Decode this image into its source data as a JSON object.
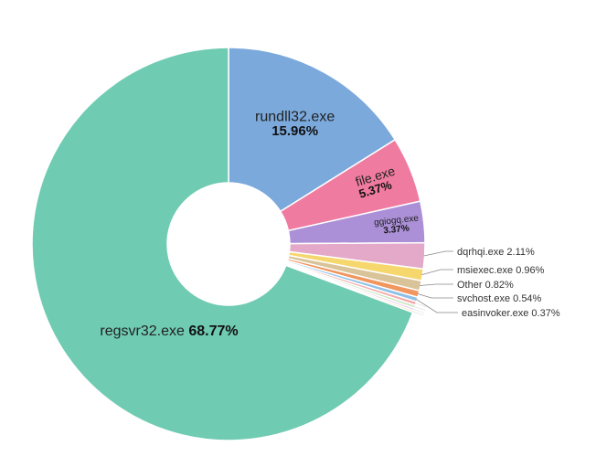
{
  "chart_data": {
    "type": "pie",
    "variant": "donut",
    "title": "",
    "legend": "none",
    "slices": [
      {
        "label": "rundll32.exe",
        "value": 15.96,
        "display": "15.96%",
        "color": "#7ba9dc"
      },
      {
        "label": "file.exe",
        "value": 5.37,
        "display": "5.37%",
        "color": "#ef7ba0"
      },
      {
        "label": "ggiogq.exe",
        "value": 3.37,
        "display": "3.37%",
        "color": "#ab8fd7"
      },
      {
        "label": "dqrhqi.exe",
        "value": 2.11,
        "display": "2.11%",
        "color": "#e4a9c8"
      },
      {
        "label": "msiexec.exe",
        "value": 0.96,
        "display": "0.96%",
        "color": "#f5d76e"
      },
      {
        "label": "Other",
        "value": 0.82,
        "display": "0.82%",
        "color": "#d9c49a"
      },
      {
        "label": "svchost.exe",
        "value": 0.54,
        "display": "0.54%",
        "color": "#f0965e"
      },
      {
        "label": "easinvoker.exe",
        "value": 0.37,
        "display": "0.37%",
        "color": "#8ec0e8"
      },
      {
        "label": "",
        "value": 0.3,
        "display": "",
        "color": "#f4a8a8"
      },
      {
        "label": "",
        "value": 0.25,
        "display": "",
        "color": "#c8e6c0"
      },
      {
        "label": "",
        "value": 0.2,
        "display": "",
        "color": "#e8d0f0"
      },
      {
        "label": "",
        "value": 0.17,
        "display": "",
        "color": "#f8e0b0"
      },
      {
        "label": "regsvr32.exe",
        "value": 68.77,
        "display": "68.77%",
        "color": "#6fcbb2"
      }
    ]
  }
}
